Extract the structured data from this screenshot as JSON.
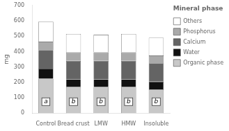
{
  "chart_data": {
    "type": "bar",
    "stacked": true,
    "categories": [
      "Control",
      "Bread crust",
      "LMW",
      "HMW",
      "Insoluble"
    ],
    "series": [
      {
        "name": "Organic phase",
        "color": "#c8c8c8",
        "values": [
          225,
          170,
          170,
          170,
          155
        ]
      },
      {
        "name": "Water",
        "color": "#111111",
        "values": [
          65,
          50,
          50,
          50,
          50
        ]
      },
      {
        "name": "Calcium",
        "color": "#646464",
        "values": [
          120,
          120,
          120,
          120,
          120
        ]
      },
      {
        "name": "Phosphorus",
        "color": "#aaaaaa",
        "values": [
          55,
          55,
          55,
          55,
          50
        ]
      },
      {
        "name": "Others",
        "color": "#ffffff",
        "values": [
          130,
          120,
          115,
          120,
          115
        ]
      }
    ],
    "ylabel": "mg",
    "ylim": [
      0,
      700
    ],
    "yticks": [
      0,
      100,
      200,
      300,
      400,
      500,
      600,
      700
    ],
    "grid": false,
    "legend": "right",
    "legend_title": "Mineral phase",
    "annotations": [
      {
        "text": "a",
        "x": "Control",
        "y": 75
      },
      {
        "text": "b",
        "x": "Bread crust",
        "y": 75
      },
      {
        "text": "b",
        "x": "LMW",
        "y": 75
      },
      {
        "text": "b",
        "x": "HMW",
        "y": 75
      },
      {
        "text": "b",
        "x": "Insoluble",
        "y": 75
      }
    ]
  }
}
